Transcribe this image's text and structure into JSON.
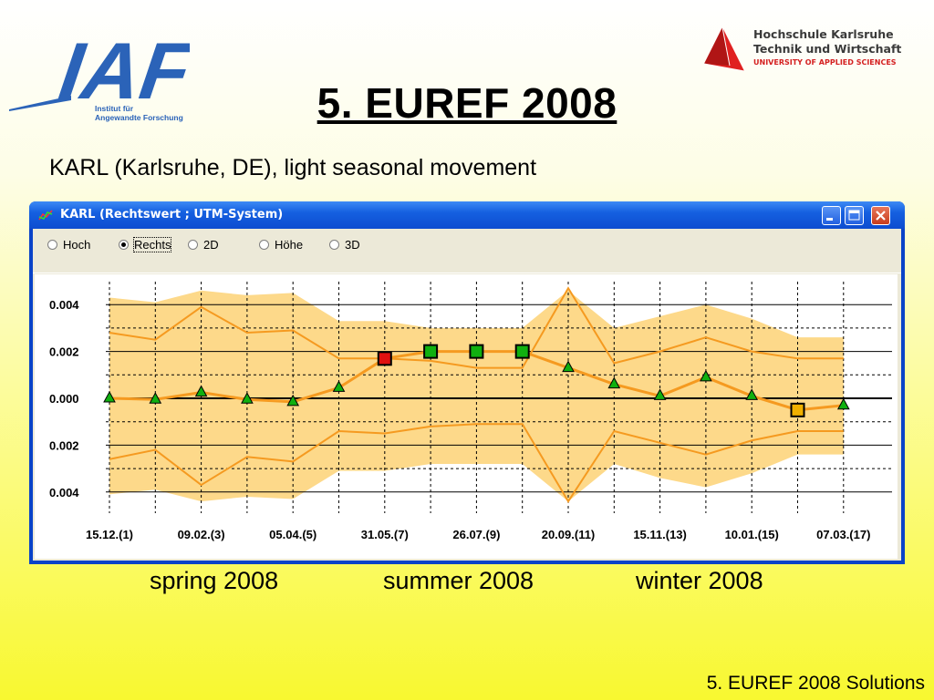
{
  "slide": {
    "title": "5. EUREF 2008",
    "subtitle": "KARL (Karlsruhe, DE), light seasonal movement",
    "footer": "5. EUREF 2008 Solutions",
    "seasons": [
      "spring 2008",
      "summer 2008",
      "winter 2008"
    ]
  },
  "logos": {
    "iaf": {
      "mark": "IAF",
      "line1": "Institut für",
      "line2": "Angewandte Forschung",
      "color": "#2b63b8"
    },
    "hs": {
      "line1": "Hochschule Karlsruhe",
      "line2": "Technik und Wirtschaft",
      "line3": "UNIVERSITY OF APPLIED SCIENCES"
    }
  },
  "window": {
    "title": "KARL (Rechtswert ; UTM-System)",
    "radios": [
      {
        "label": "Hoch",
        "selected": false
      },
      {
        "label": "Rechts",
        "selected": true
      },
      {
        "label": "2D",
        "selected": false
      },
      {
        "label": "Höhe",
        "selected": false
      },
      {
        "label": "3D",
        "selected": false
      }
    ],
    "buttons": [
      "minimize-icon",
      "maximize-icon",
      "close-icon"
    ]
  },
  "chart_data": {
    "type": "line",
    "ytick_labels": [
      "0.004",
      "0.002",
      "0.000",
      "0.002",
      "0.004"
    ],
    "ytick_values": [
      0.004,
      0.002,
      0.0,
      -0.002,
      -0.004
    ],
    "ylim": [
      -0.0045,
      0.0048
    ],
    "xtick_labels": [
      "15.12.(1)",
      "09.02.(3)",
      "05.04.(5)",
      "31.05.(7)",
      "26.07.(9)",
      "20.09.(11)",
      "15.11.(13)",
      "10.01.(15)",
      "07.03.(17)"
    ],
    "x": [
      1,
      2,
      3,
      4,
      5,
      6,
      7,
      8,
      9,
      10,
      11,
      12,
      13,
      14,
      15,
      16,
      17
    ],
    "values": [
      0.0,
      -5e-05,
      0.00025,
      -5e-05,
      -0.00015,
      0.00045,
      0.0017,
      0.002,
      0.002,
      0.002,
      0.0013,
      0.0006,
      0.0001,
      0.0009,
      0.0001,
      -0.0005,
      -0.0003
    ],
    "upper": [
      0.0028,
      0.0025,
      0.0039,
      0.0028,
      0.0029,
      0.0017,
      0.0017,
      0.0016,
      0.0013,
      0.0013,
      0.0047,
      0.0015,
      0.002,
      0.0026,
      0.002,
      0.0017,
      0.0017
    ],
    "lower": [
      -0.0026,
      -0.0022,
      -0.0037,
      -0.0025,
      -0.0027,
      -0.0014,
      -0.0015,
      -0.0012,
      -0.0011,
      -0.0011,
      -0.0044,
      -0.0014,
      -0.0019,
      -0.0024,
      -0.0018,
      -0.0014,
      -0.0014
    ],
    "band_upper": [
      0.0043,
      0.0041,
      0.0046,
      0.0044,
      0.0045,
      0.0033,
      0.0033,
      0.003,
      0.003,
      0.003,
      0.0046,
      0.003,
      0.0035,
      0.004,
      0.0034,
      0.0026,
      0.0026
    ],
    "band_lower": [
      -0.0041,
      -0.0039,
      -0.0044,
      -0.0042,
      -0.0043,
      -0.0031,
      -0.0031,
      -0.0028,
      -0.0028,
      -0.0028,
      -0.0044,
      -0.0028,
      -0.0034,
      -0.0038,
      -0.0032,
      -0.0024,
      -0.0024
    ],
    "marker_types": [
      "triangle",
      "triangle",
      "triangle",
      "triangle",
      "triangle",
      "triangle",
      "square",
      "square",
      "square",
      "square",
      "triangle",
      "triangle",
      "triangle",
      "triangle",
      "triangle",
      "square",
      "triangle"
    ],
    "marker_colors": [
      "#10b010",
      "#10b010",
      "#10b010",
      "#10b010",
      "#10b010",
      "#10b010",
      "#e01010",
      "#10b010",
      "#10b010",
      "#10b010",
      "#10b010",
      "#10b010",
      "#10b010",
      "#10b010",
      "#10b010",
      "#f0b000",
      "#10b010"
    ],
    "colors": {
      "band": "#fdd98a",
      "line": "#f59a20",
      "grid": "#000000"
    },
    "grid": true
  }
}
